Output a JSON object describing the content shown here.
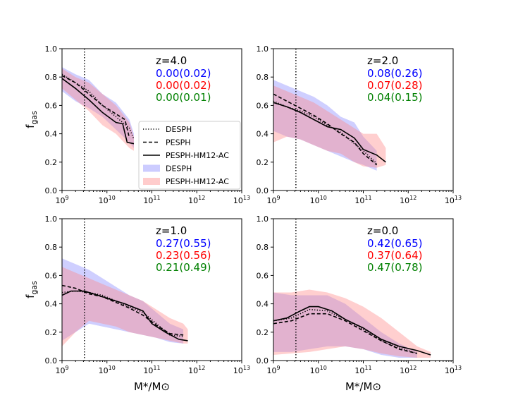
{
  "chart_data": [
    {
      "type": "line",
      "panel": "z4",
      "z_label": "z=4.0",
      "stats": [
        {
          "text": "0.00(0.02)",
          "color": "#0000ff"
        },
        {
          "text": "0.00(0.02)",
          "color": "#ff0000"
        },
        {
          "text": "0.00(0.01)",
          "color": "#008000"
        }
      ],
      "ylabel": "f_gas",
      "xlabel": "",
      "show_xlabel": false,
      "show_ylabel": true,
      "vline_logx": 9.5,
      "x_log_range": [
        9,
        13
      ],
      "ylim": [
        0,
        1.0
      ],
      "series": [
        {
          "name": "DESPH",
          "style": "dotted",
          "x": [
            9.0,
            9.3,
            9.6,
            9.9,
            10.2,
            10.5,
            10.6
          ],
          "y": [
            0.82,
            0.76,
            0.7,
            0.6,
            0.52,
            0.44,
            0.36
          ]
        },
        {
          "name": "PESPH",
          "style": "dashed",
          "x": [
            9.0,
            9.3,
            9.6,
            9.9,
            10.2,
            10.4,
            10.5
          ],
          "y": [
            0.81,
            0.76,
            0.68,
            0.6,
            0.54,
            0.5,
            0.37
          ]
        },
        {
          "name": "PESPH-HM12-AC",
          "style": "solid",
          "x": [
            9.0,
            9.3,
            9.6,
            9.9,
            10.2,
            10.35,
            10.45,
            10.6
          ],
          "y": [
            0.79,
            0.72,
            0.64,
            0.55,
            0.48,
            0.47,
            0.34,
            0.33
          ]
        }
      ],
      "bands": [
        {
          "name": "DESPH",
          "color": "#8888ff",
          "x": [
            9.0,
            9.3,
            9.6,
            9.9,
            10.2,
            10.5,
            10.6
          ],
          "lower": [
            0.7,
            0.63,
            0.58,
            0.52,
            0.43,
            0.34,
            0.3
          ],
          "upper": [
            0.87,
            0.82,
            0.78,
            0.68,
            0.62,
            0.5,
            0.4
          ]
        },
        {
          "name": "PESPH-HM12-AC",
          "color": "#ff8888",
          "x": [
            9.0,
            9.3,
            9.6,
            9.9,
            10.2,
            10.5,
            10.6
          ],
          "lower": [
            0.72,
            0.64,
            0.56,
            0.46,
            0.4,
            0.3,
            0.28
          ],
          "upper": [
            0.86,
            0.8,
            0.76,
            0.68,
            0.6,
            0.48,
            0.38
          ]
        }
      ]
    },
    {
      "type": "line",
      "panel": "z2",
      "z_label": "z=2.0",
      "stats": [
        {
          "text": "0.08(0.26)",
          "color": "#0000ff"
        },
        {
          "text": "0.07(0.28)",
          "color": "#ff0000"
        },
        {
          "text": "0.04(0.15)",
          "color": "#008000"
        }
      ],
      "ylabel": "",
      "xlabel": "",
      "show_xlabel": false,
      "show_ylabel": false,
      "vline_logx": 9.5,
      "x_log_range": [
        9,
        13
      ],
      "ylim": [
        0,
        1.0
      ],
      "series": [
        {
          "name": "DESPH",
          "style": "dotted",
          "x": [
            9.0,
            9.3,
            9.6,
            9.9,
            10.2,
            10.5,
            10.8,
            11.0,
            11.3
          ],
          "y": [
            0.63,
            0.59,
            0.56,
            0.52,
            0.46,
            0.41,
            0.33,
            0.28,
            0.19
          ]
        },
        {
          "name": "PESPH",
          "style": "dashed",
          "x": [
            9.0,
            9.3,
            9.6,
            9.9,
            10.2,
            10.5,
            10.8,
            11.0,
            11.3
          ],
          "y": [
            0.68,
            0.63,
            0.58,
            0.53,
            0.47,
            0.4,
            0.34,
            0.26,
            0.18
          ]
        },
        {
          "name": "PESPH-HM12-AC",
          "style": "solid",
          "x": [
            9.0,
            9.3,
            9.6,
            9.9,
            10.2,
            10.5,
            10.8,
            11.0,
            11.3,
            11.5
          ],
          "y": [
            0.62,
            0.59,
            0.55,
            0.5,
            0.45,
            0.43,
            0.37,
            0.29,
            0.25,
            0.2
          ]
        }
      ],
      "bands": [
        {
          "name": "DESPH",
          "color": "#8888ff",
          "x": [
            9.0,
            9.3,
            9.6,
            9.9,
            10.2,
            10.5,
            10.8,
            11.0,
            11.3
          ],
          "lower": [
            0.42,
            0.38,
            0.36,
            0.32,
            0.28,
            0.24,
            0.2,
            0.18,
            0.14
          ],
          "upper": [
            0.78,
            0.74,
            0.7,
            0.66,
            0.6,
            0.52,
            0.48,
            0.38,
            0.28
          ]
        },
        {
          "name": "PESPH-HM12-AC",
          "color": "#ff8888",
          "x": [
            9.0,
            9.3,
            9.6,
            9.9,
            10.2,
            10.5,
            10.8,
            11.0,
            11.3,
            11.5
          ],
          "lower": [
            0.34,
            0.38,
            0.36,
            0.32,
            0.28,
            0.26,
            0.2,
            0.17,
            0.16,
            0.18
          ],
          "upper": [
            0.74,
            0.7,
            0.66,
            0.62,
            0.56,
            0.5,
            0.44,
            0.4,
            0.4,
            0.3
          ]
        }
      ]
    },
    {
      "type": "line",
      "panel": "z1",
      "z_label": "z=1.0",
      "stats": [
        {
          "text": "0.27(0.55)",
          "color": "#0000ff"
        },
        {
          "text": "0.23(0.56)",
          "color": "#ff0000"
        },
        {
          "text": "0.21(0.49)",
          "color": "#008000"
        }
      ],
      "ylabel": "f_gas",
      "xlabel": "M*/M⊙",
      "show_xlabel": true,
      "show_ylabel": true,
      "vline_logx": 9.5,
      "x_log_range": [
        9,
        13
      ],
      "ylim": [
        0,
        1.0
      ],
      "series": [
        {
          "name": "DESPH",
          "style": "dotted",
          "x": [
            9.0,
            9.3,
            9.6,
            9.9,
            10.2,
            10.5,
            10.8,
            11.1,
            11.4,
            11.7
          ],
          "y": [
            0.48,
            0.49,
            0.48,
            0.46,
            0.42,
            0.38,
            0.34,
            0.26,
            0.18,
            0.17
          ]
        },
        {
          "name": "PESPH",
          "style": "dashed",
          "x": [
            9.0,
            9.3,
            9.6,
            9.9,
            10.2,
            10.5,
            10.8,
            11.1,
            11.4,
            11.7
          ],
          "y": [
            0.53,
            0.51,
            0.47,
            0.45,
            0.41,
            0.37,
            0.32,
            0.25,
            0.19,
            0.18
          ]
        },
        {
          "name": "PESPH-HM12-AC",
          "style": "solid",
          "x": [
            9.0,
            9.2,
            9.5,
            9.8,
            10.1,
            10.4,
            10.8,
            11.0,
            11.3,
            11.6,
            11.8
          ],
          "y": [
            0.46,
            0.49,
            0.49,
            0.46,
            0.43,
            0.4,
            0.35,
            0.26,
            0.2,
            0.15,
            0.14
          ]
        }
      ],
      "bands": [
        {
          "name": "DESPH",
          "color": "#8888ff",
          "x": [
            9.0,
            9.3,
            9.6,
            9.9,
            10.2,
            10.5,
            10.8,
            11.1,
            11.4,
            11.7
          ],
          "lower": [
            0.14,
            0.2,
            0.26,
            0.24,
            0.22,
            0.2,
            0.18,
            0.16,
            0.13,
            0.12
          ],
          "upper": [
            0.72,
            0.68,
            0.64,
            0.58,
            0.52,
            0.46,
            0.42,
            0.34,
            0.26,
            0.22
          ]
        },
        {
          "name": "PESPH-HM12-AC",
          "color": "#ff8888",
          "x": [
            9.0,
            9.3,
            9.6,
            9.9,
            10.2,
            10.5,
            10.8,
            11.1,
            11.4,
            11.7,
            11.8
          ],
          "lower": [
            0.1,
            0.2,
            0.28,
            0.26,
            0.24,
            0.2,
            0.18,
            0.16,
            0.14,
            0.12,
            0.12
          ],
          "upper": [
            0.66,
            0.62,
            0.58,
            0.54,
            0.5,
            0.46,
            0.42,
            0.36,
            0.3,
            0.26,
            0.22
          ]
        }
      ]
    },
    {
      "type": "line",
      "panel": "z0",
      "z_label": "z=0.0",
      "stats": [
        {
          "text": "0.42(0.65)",
          "color": "#0000ff"
        },
        {
          "text": "0.37(0.64)",
          "color": "#ff0000"
        },
        {
          "text": "0.47(0.78)",
          "color": "#008000"
        }
      ],
      "ylabel": "",
      "xlabel": "M*/M⊙",
      "show_xlabel": true,
      "show_ylabel": false,
      "vline_logx": 9.5,
      "x_log_range": [
        9,
        13
      ],
      "ylim": [
        0,
        1.0
      ],
      "series": [
        {
          "name": "DESPH",
          "style": "dotted",
          "x": [
            9.0,
            9.4,
            9.8,
            10.2,
            10.6,
            11.0,
            11.4,
            11.8,
            12.2
          ],
          "y": [
            0.28,
            0.3,
            0.36,
            0.35,
            0.29,
            0.22,
            0.14,
            0.09,
            0.05
          ]
        },
        {
          "name": "PESPH",
          "style": "dashed",
          "x": [
            9.0,
            9.4,
            9.8,
            10.2,
            10.6,
            11.0,
            11.4,
            11.8,
            12.2
          ],
          "y": [
            0.26,
            0.28,
            0.33,
            0.33,
            0.28,
            0.21,
            0.14,
            0.08,
            0.05
          ]
        },
        {
          "name": "PESPH-HM12-AC",
          "style": "solid",
          "x": [
            9.0,
            9.3,
            9.6,
            9.8,
            10.0,
            10.3,
            10.6,
            11.0,
            11.4,
            11.8,
            12.2,
            12.5
          ],
          "y": [
            0.28,
            0.3,
            0.35,
            0.38,
            0.38,
            0.35,
            0.29,
            0.23,
            0.15,
            0.1,
            0.07,
            0.04
          ]
        }
      ],
      "bands": [
        {
          "name": "DESPH",
          "color": "#8888ff",
          "x": [
            9.0,
            9.4,
            9.8,
            10.2,
            10.6,
            11.0,
            11.4,
            11.8,
            12.2
          ],
          "lower": [
            0.06,
            0.06,
            0.08,
            0.1,
            0.1,
            0.08,
            0.04,
            0.02,
            0.02
          ],
          "upper": [
            0.48,
            0.46,
            0.46,
            0.46,
            0.4,
            0.3,
            0.2,
            0.12,
            0.06
          ]
        },
        {
          "name": "PESPH-HM12-AC",
          "color": "#ff8888",
          "x": [
            9.0,
            9.4,
            9.8,
            10.2,
            10.6,
            11.0,
            11.4,
            11.8,
            12.2,
            12.5
          ],
          "lower": [
            0.04,
            0.05,
            0.06,
            0.08,
            0.1,
            0.08,
            0.05,
            0.03,
            0.02,
            0.02
          ],
          "upper": [
            0.48,
            0.48,
            0.5,
            0.48,
            0.44,
            0.38,
            0.3,
            0.2,
            0.1,
            0.06
          ]
        }
      ]
    }
  ],
  "axes": {
    "x_tick_labels": [
      "10^9",
      "10^10",
      "10^11",
      "10^12",
      "10^13"
    ],
    "y_tick_labels": [
      "0.0",
      "0.2",
      "0.4",
      "0.6",
      "0.8",
      "1.0"
    ]
  },
  "legend": {
    "entries": [
      {
        "label": "DESPH",
        "kind": "line",
        "style": "dotted"
      },
      {
        "label": "PESPH",
        "kind": "line",
        "style": "dashed"
      },
      {
        "label": "PESPH-HM12-AC",
        "kind": "line",
        "style": "solid"
      },
      {
        "label": "DESPH",
        "kind": "patch",
        "color": "#ccccff"
      },
      {
        "label": "PESPH-HM12-AC",
        "kind": "patch",
        "color": "#ffcccc"
      }
    ]
  }
}
